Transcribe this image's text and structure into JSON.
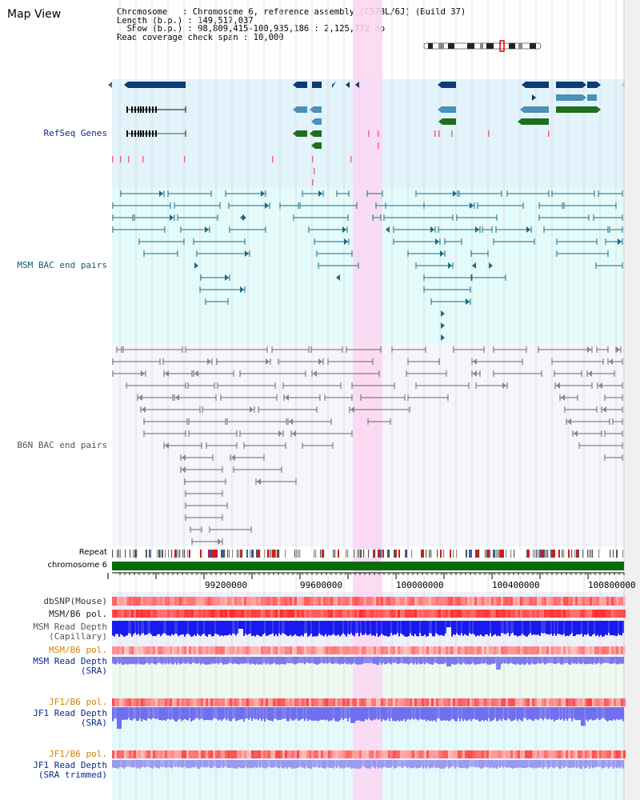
{
  "header": {
    "title": "Map View",
    "chromosome_line": "Chromosome   : Chromosome 6, reference assembly (C57BL/6J) (Build 37)",
    "length_line": "Length (b.p.) : 149,517,037",
    "show_line": "  Show (b.p.) : 98,809,415-100,935,186 : 2,125,772 bp",
    "coverage_line": "Read coverage check span : 10,000"
  },
  "tracks": {
    "refseq": "RefSeq Genes",
    "msm_bac": "MSM BAC end pairs",
    "b6n_bac": "B6N BAC end pairs",
    "repeat": "Repeat",
    "chromosome": "chromosome 6",
    "dbsnp": "dbSNP(Mouse)",
    "msm_b6_pol_1": "MSM/B6 pol.",
    "msm_depth_cap": "MSM Read Depth\n(Capillary)",
    "msm_b6_pol_2": "MSM/B6 pol.",
    "msm_depth_sra": "MSM Read Depth\n(SRA)",
    "jf1_b6_pol_1": "JF1/B6 pol.",
    "jf1_depth_sra": "JF1 Read Depth\n(SRA)",
    "jf1_b6_pol_2": "JF1/B6 pol.",
    "jf1_depth_trim": "JF1 Read Depth\n(SRA trimmed)"
  },
  "axis": {
    "ticks": [
      "99200000",
      "99600000",
      "100000000",
      "100400000",
      "100800000"
    ]
  },
  "colors": {
    "refseq_bg": "#e2f3fb",
    "msm_bg": "#e4fbfb",
    "b6n_bg": "#f5f6fb",
    "highlight": "#fbd6f2",
    "gene_dark": "#0d3b73",
    "gene_mid": "#4a90b8",
    "gene_green": "#1e6e1e",
    "msm_line": "#1a6a88",
    "b6n_line": "#666666",
    "chrom_bar": "#0a6b0a",
    "depth_blue": "#1a1aee",
    "depth_light": "#7a7aee",
    "snp_red": "#e04040",
    "label_navy": "#0b2a8a",
    "label_teal": "#0e5e74",
    "label_gray": "#555555",
    "label_orange": "#d98200",
    "label_dark": "#222222"
  }
}
